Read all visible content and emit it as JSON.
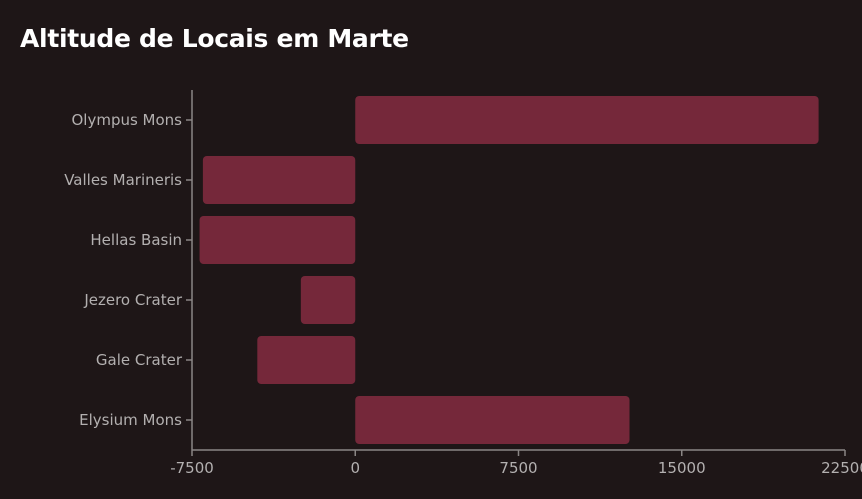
{
  "chart_data": {
    "type": "bar",
    "orientation": "horizontal",
    "title": "Altitude de Locais em Marte",
    "xlabel": "",
    "ylabel": "",
    "categories": [
      "Olympus Mons",
      "Valles Marineris",
      "Hellas Basin",
      "Jezero Crater",
      "Gale Crater",
      "Elysium Mons"
    ],
    "values": [
      21287,
      -7000,
      -7152,
      -2500,
      -4500,
      12600
    ],
    "xlim": [
      -7500,
      22500
    ],
    "xticks": [
      "-7500",
      "0",
      "7500",
      "15000",
      "22500"
    ],
    "bar_color": "#75283a",
    "grid": false,
    "legend": "none"
  }
}
